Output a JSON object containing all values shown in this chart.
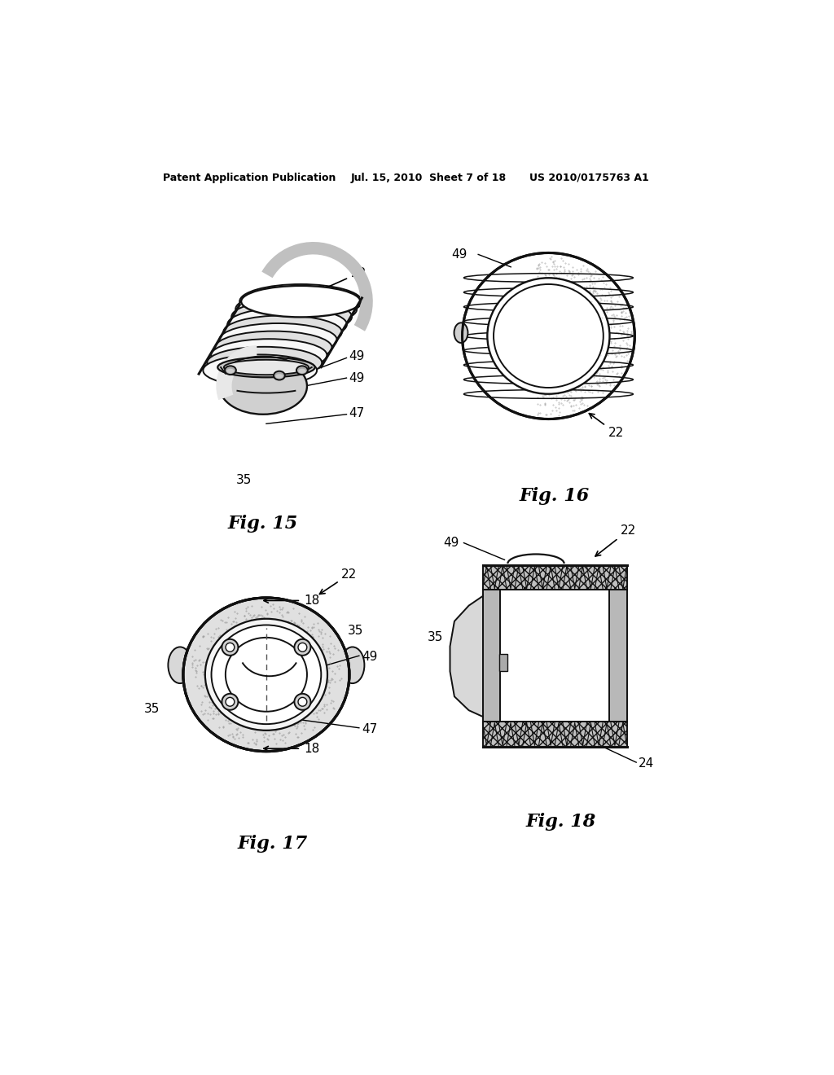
{
  "bg_color": "#ffffff",
  "header_left": "Patent Application Publication",
  "header_mid": "Jul. 15, 2010  Sheet 7 of 18",
  "header_right": "US 2010/0175763 A1",
  "fig15_caption": "Fig. 15",
  "fig16_caption": "Fig. 16",
  "fig17_caption": "Fig. 17",
  "fig18_caption": "Fig. 18",
  "lc": "#000000",
  "lw_main": 1.5,
  "lw_thick": 2.2
}
